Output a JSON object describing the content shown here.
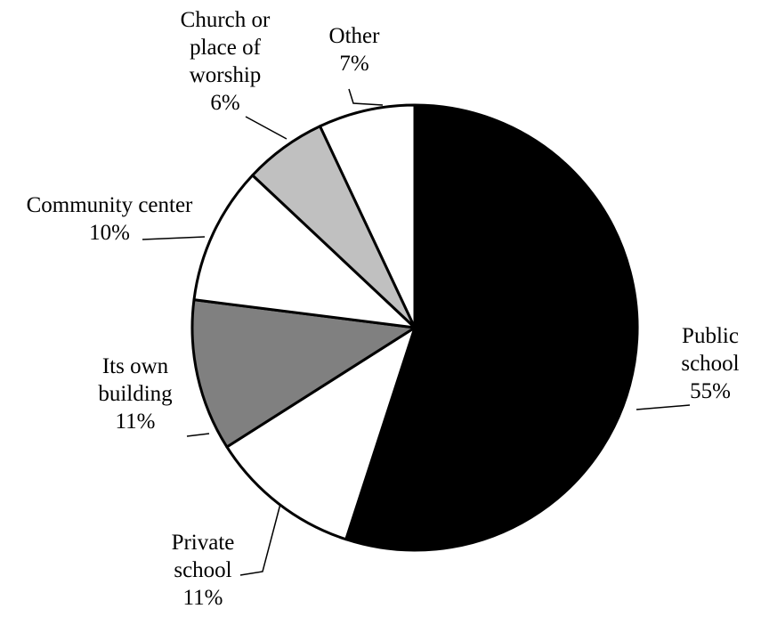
{
  "chart_data": {
    "type": "pie",
    "start": "12 o'clock, clockwise",
    "slices": [
      {
        "label": [
          "Public",
          "school"
        ],
        "value": 55,
        "value_label": "55%",
        "fill": "#000000"
      },
      {
        "label": [
          "Private",
          "school"
        ],
        "value": 11,
        "value_label": "11%",
        "fill": "#ffffff"
      },
      {
        "label": [
          "Its own",
          "building"
        ],
        "value": 11,
        "value_label": "11%",
        "fill": "#808080"
      },
      {
        "label": [
          "Community center"
        ],
        "value": 10,
        "value_label": "10%",
        "fill": "#ffffff"
      },
      {
        "label": [
          "Church or",
          "place of",
          "worship"
        ],
        "value": 6,
        "value_label": "6%",
        "fill": "#c0c0c0"
      },
      {
        "label": [
          "Other"
        ],
        "value": 7,
        "value_label": "7%",
        "fill": "#ffffff"
      }
    ],
    "slice_outline": "#000000"
  }
}
